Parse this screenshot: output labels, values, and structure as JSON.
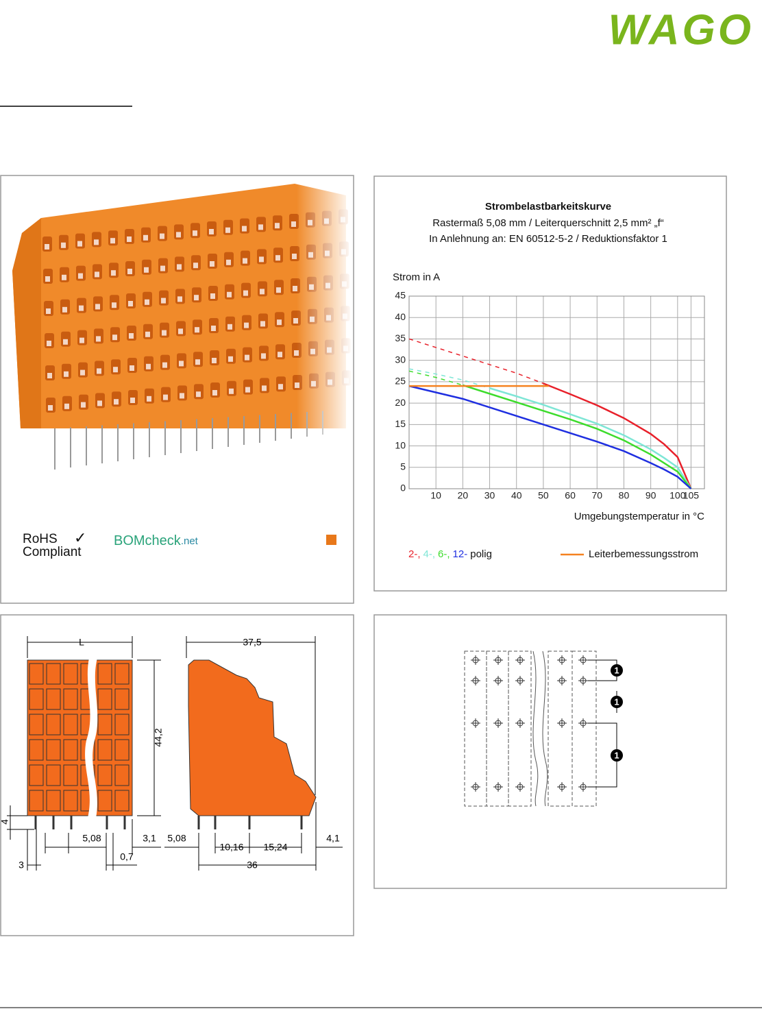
{
  "header": {
    "logo": "WAGO"
  },
  "photo_panel": {
    "rohs": "RoHS",
    "checkmark": "✓",
    "compliant": "Compliant",
    "bomcheck": "BOMcheck",
    "bomcheck_suffix": ".net"
  },
  "chart_data": {
    "type": "line",
    "title": "Strombelastbarkeitskurve",
    "subtitle": [
      "Rastermaß 5,08 mm / Leiterquerschnitt 2,5 mm² „f“",
      "In Anlehnung an: EN 60512-5-2 / Reduktionsfaktor 1"
    ],
    "y_label": "Strom in A",
    "x_label": "Umgebungstemperatur in °C",
    "xlim": [
      0,
      110
    ],
    "xticks": [
      10,
      20,
      30,
      40,
      50,
      60,
      70,
      80,
      90,
      100,
      105
    ],
    "ylim": [
      0,
      45
    ],
    "yticks": [
      0,
      5,
      10,
      15,
      20,
      25,
      30,
      35,
      40,
      45
    ],
    "grid": true,
    "series": [
      {
        "name": "2-,",
        "color": "#e8202a",
        "x": [
          0,
          10,
          20,
          30,
          40,
          50,
          60,
          70,
          80,
          90,
          95,
          100,
          105
        ],
        "values": [
          35,
          33,
          31,
          29,
          27,
          24.6,
          22.1,
          19.5,
          16.5,
          12.8,
          10.4,
          7.4,
          0
        ]
      },
      {
        "name": "4-,",
        "color": "#7fe6d6",
        "x": [
          0,
          10,
          20,
          30,
          40,
          50,
          60,
          70,
          80,
          90,
          95,
          100,
          105
        ],
        "values": [
          28,
          26.8,
          25.4,
          23.5,
          21.6,
          19.6,
          17.4,
          15.2,
          12.5,
          9.2,
          7.2,
          5,
          0
        ]
      },
      {
        "name": "6-,",
        "color": "#3ddc2c",
        "x": [
          0,
          10,
          20,
          30,
          40,
          50,
          60,
          70,
          80,
          90,
          95,
          100,
          105
        ],
        "values": [
          27.5,
          26,
          24.2,
          22.2,
          20.2,
          18.2,
          16.2,
          14,
          11.3,
          8,
          6,
          4,
          0
        ]
      },
      {
        "name": "12-",
        "color": "#1f2fe0",
        "x": [
          0,
          10,
          20,
          30,
          40,
          50,
          60,
          70,
          80,
          90,
          95,
          100,
          105
        ],
        "values": [
          24,
          22.5,
          21,
          19,
          17,
          15,
          13,
          11,
          8.8,
          6,
          4.5,
          2.8,
          0
        ]
      }
    ],
    "legend_suffix": "polig",
    "rated_current": {
      "name": "Leiterbemessungsstrom",
      "color": "#f58220",
      "x": [
        0,
        52
      ],
      "values": [
        24,
        24
      ]
    }
  },
  "dimension_drawing": {
    "labels": [
      "L",
      "37,5",
      "44,2",
      "4",
      "5,08",
      "3,1",
      "3",
      "0,7",
      "5,08",
      "10,16",
      "15,24",
      "4,1",
      "36"
    ]
  },
  "pin_diagram": {
    "callouts": [
      "1",
      "1",
      "1"
    ]
  }
}
